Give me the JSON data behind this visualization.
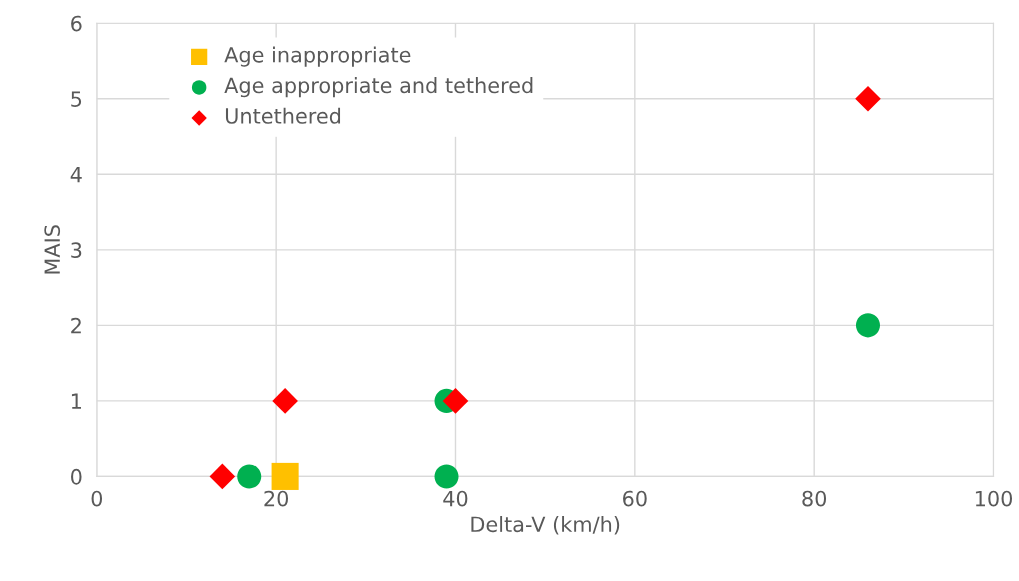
{
  "chart_data": {
    "type": "scatter",
    "xlabel": "Delta-V (km/h)",
    "ylabel": "MAIS",
    "xlim": [
      0,
      100
    ],
    "xticks": [
      0,
      20,
      40,
      60,
      80,
      100
    ],
    "ylim": [
      0,
      6
    ],
    "yticks": [
      0,
      1,
      2,
      3,
      4,
      5,
      6
    ],
    "grid": true,
    "legend": "top left",
    "series": [
      {
        "name": "Age inappropriate",
        "color": "#ffc000",
        "marker": "square",
        "x": [
          21
        ],
        "values": [
          0
        ]
      },
      {
        "name": "Age appropriate and tethered",
        "color": "#00b050",
        "marker": "circle",
        "x": [
          17,
          39,
          39,
          86
        ],
        "values": [
          0,
          1,
          0,
          2
        ]
      },
      {
        "name": "Untethered",
        "color": "#ff0000",
        "marker": "diamond",
        "x": [
          14,
          21,
          40,
          86
        ],
        "values": [
          0,
          1,
          1,
          5
        ]
      }
    ]
  }
}
